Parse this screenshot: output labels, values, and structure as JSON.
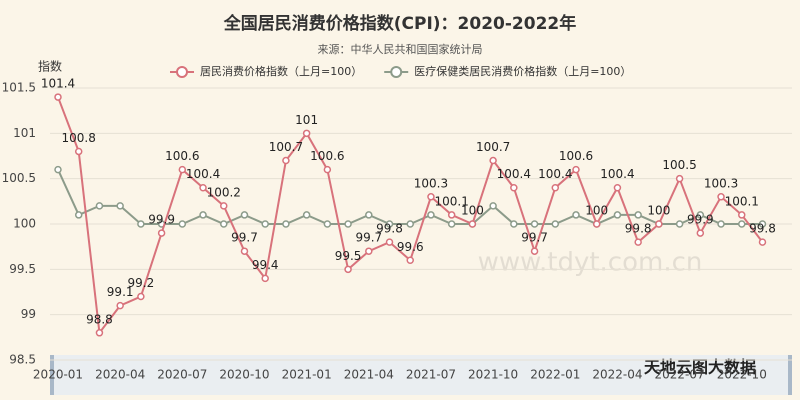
{
  "chart_data": {
    "type": "line",
    "title": "全国居民消费价格指数(CPI)：2020-2022年",
    "subtitle": "来源：中华人民共和国国家统计局",
    "y_label": "指数",
    "watermark": "www.tdyt.com.cn",
    "brand": "天地云图大数据",
    "categories": [
      "2020-01",
      null,
      null,
      "2020-04",
      null,
      null,
      "2020-07",
      null,
      null,
      "2020-10",
      null,
      null,
      "2021-01",
      null,
      null,
      "2021-04",
      null,
      null,
      "2021-07",
      null,
      null,
      "2021-10",
      null,
      null,
      "2022-01",
      null,
      null,
      "2022-04",
      null,
      null,
      "2022-07",
      null,
      null,
      "2022-10",
      null
    ],
    "series": [
      {
        "name": "居民消费价格指数（上月=100）",
        "color": "#d8727b",
        "show_labels": true,
        "values": [
          101.4,
          100.8,
          98.8,
          99.1,
          99.2,
          99.9,
          100.6,
          100.4,
          100.2,
          99.7,
          99.4,
          100.7,
          101,
          100.6,
          99.5,
          99.7,
          99.8,
          99.6,
          100.3,
          100.1,
          100,
          100.7,
          100.4,
          99.7,
          100.4,
          100.6,
          100,
          100.4,
          99.8,
          100,
          100.5,
          99.9,
          100.3,
          100.1,
          99.8
        ]
      },
      {
        "name": "医疗保健类居民消费价格指数（上月=100）",
        "color": "#8c9b8a",
        "show_labels": false,
        "values": [
          100.6,
          100.1,
          100.2,
          100.2,
          100,
          100,
          100,
          100.1,
          100,
          100.1,
          100,
          100,
          100.1,
          100,
          100,
          100.1,
          100,
          100,
          100.1,
          100,
          100,
          100.2,
          100,
          100,
          100,
          100.1,
          100,
          100.1,
          100.1,
          100,
          100,
          100.1,
          100,
          100,
          100
        ]
      }
    ],
    "ylim": [
      98.5,
      101.5
    ],
    "yticks": [
      98.5,
      99,
      99.5,
      100,
      100.5,
      101,
      101.5
    ],
    "grid": true
  }
}
